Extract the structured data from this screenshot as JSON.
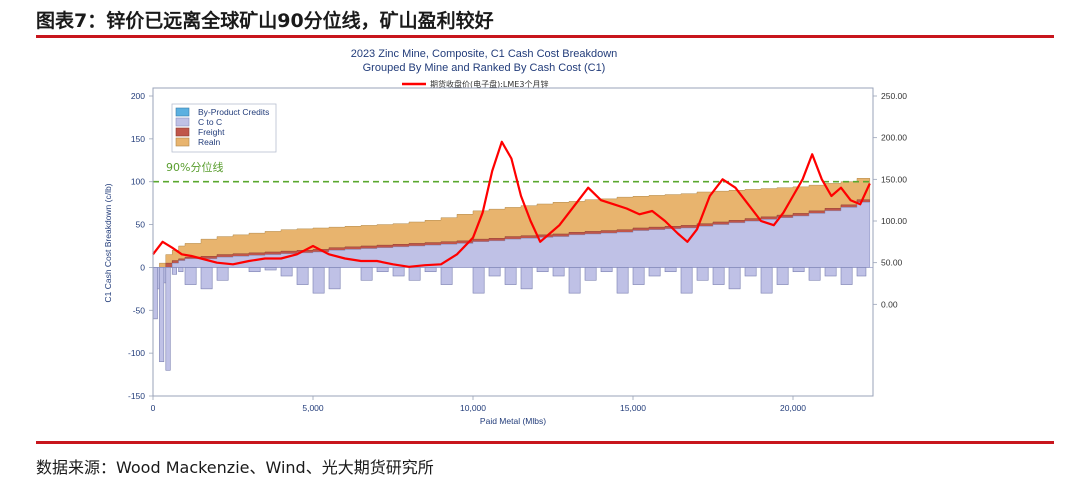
{
  "figure_title": "图表7：锌价已远离全球矿山90分位线，矿山盈利较好",
  "source": "数据来源：Wood Mackenzie、Wind、光大期货研究所",
  "colors": {
    "accent_bar": "#c8161d",
    "by_product_credits": "#5bb0e0",
    "c_to_c": "#bfc1e6",
    "freight": "#c0564a",
    "realn": "#e8b46e",
    "price_line": "#ff0000",
    "percentile_line": "#5aa82f"
  },
  "chart_data": {
    "type": "area",
    "title": "2023 Zinc Mine, Composite, C1 Cash Cost Breakdown",
    "subtitle": "Grouped By Mine and Ranked By Cash Cost (C1)",
    "xlabel": "Paid Metal (Mlbs)",
    "ylabel": "C1 Cash Cost Breakdown (c/lb)",
    "xlim": [
      0,
      22500
    ],
    "ylim": [
      -150,
      200
    ],
    "x_ticks": [
      "0",
      "5,000",
      "10,000",
      "15,000",
      "20,000"
    ],
    "y_ticks": [
      "200",
      "150",
      "100",
      "50",
      "0",
      "-50",
      "-100",
      "-150"
    ],
    "right_axis": {
      "ticks": [
        "250.00",
        "200.00",
        "150.00",
        "100.00",
        "50.00",
        "0.00"
      ],
      "ylim": [
        -110,
        250
      ]
    },
    "legend": {
      "placement": "top-left",
      "entries": [
        "By-Product Credits",
        "C to C",
        "Freight",
        "Realn"
      ]
    },
    "price_series_name": "期货收盘价(电子盘):LME3个月锌",
    "percentile_label": "90%分位线",
    "percentile_value": 100,
    "cost_curve": {
      "x": [
        0,
        200,
        400,
        600,
        800,
        1000,
        1500,
        2000,
        2500,
        3000,
        3500,
        4000,
        4500,
        5000,
        5500,
        6000,
        6500,
        7000,
        7500,
        8000,
        8500,
        9000,
        9500,
        10000,
        10500,
        11000,
        11500,
        12000,
        12500,
        13000,
        13500,
        14000,
        14500,
        15000,
        15500,
        16000,
        16500,
        17000,
        17500,
        18000,
        18500,
        19000,
        19500,
        20000,
        20500,
        21000,
        21500,
        22000,
        22400
      ],
      "c_to_c": [
        -25,
        -18,
        0,
        5,
        8,
        10,
        10,
        12,
        13,
        14,
        15,
        16,
        17,
        18,
        20,
        21,
        22,
        23,
        24,
        25,
        26,
        27,
        28,
        30,
        31,
        33,
        34,
        35,
        36,
        38,
        39,
        40,
        41,
        43,
        44,
        45,
        46,
        48,
        50,
        52,
        54,
        56,
        58,
        60,
        63,
        66,
        70,
        76,
        90
      ],
      "freight": [
        -15,
        -10,
        5,
        8,
        10,
        12,
        13,
        15,
        16,
        17,
        18,
        19,
        20,
        21,
        23,
        24,
        25,
        26,
        27,
        28,
        29,
        30,
        31,
        33,
        34,
        36,
        37,
        38,
        39,
        41,
        42,
        43,
        44,
        46,
        47,
        48,
        49,
        51,
        53,
        55,
        57,
        59,
        61,
        63,
        66,
        69,
        73,
        79,
        94
      ],
      "total": [
        -5,
        5,
        15,
        20,
        25,
        28,
        33,
        36,
        38,
        40,
        42,
        44,
        45,
        46,
        47,
        48,
        49,
        50,
        51,
        53,
        55,
        58,
        62,
        66,
        68,
        70,
        72,
        74,
        76,
        77,
        79,
        80,
        82,
        83,
        84,
        85,
        86,
        88,
        89,
        90,
        91,
        92,
        93,
        94,
        96,
        98,
        100,
        104,
        115
      ],
      "credits": [
        -60,
        -110,
        -120,
        -8,
        -5,
        -20,
        -25,
        -15,
        0,
        -5,
        -3,
        -10,
        -20,
        -30,
        -25,
        0,
        -15,
        -5,
        -10,
        -15,
        -5,
        -20,
        0,
        -30,
        -10,
        -20,
        -25,
        -5,
        -10,
        -30,
        -15,
        -5,
        -30,
        -20,
        -10,
        -5,
        -30,
        -15,
        -20,
        -25,
        -10,
        -30,
        -20,
        -5,
        -15,
        -10,
        -20,
        -10,
        -30
      ]
    },
    "price_line": {
      "x": [
        0,
        300,
        600,
        900,
        1200,
        1500,
        2000,
        2500,
        3000,
        3500,
        4000,
        4500,
        5000,
        5500,
        6000,
        6500,
        7000,
        7500,
        8000,
        8500,
        9000,
        9500,
        10000,
        10300,
        10600,
        10900,
        11200,
        11500,
        11800,
        12100,
        12400,
        12700,
        13000,
        13300,
        13600,
        14000,
        14400,
        14800,
        15200,
        15600,
        16000,
        16400,
        16700,
        17000,
        17400,
        17800,
        18200,
        18600,
        19000,
        19400,
        19700,
        20000,
        20300,
        20600,
        20900,
        21200,
        21500,
        21800,
        22100,
        22400
      ],
      "y": [
        60,
        75,
        68,
        60,
        58,
        55,
        50,
        48,
        52,
        55,
        55,
        60,
        70,
        60,
        55,
        52,
        52,
        48,
        45,
        47,
        48,
        60,
        80,
        110,
        160,
        195,
        175,
        130,
        100,
        75,
        85,
        95,
        110,
        125,
        140,
        125,
        120,
        115,
        108,
        112,
        100,
        85,
        75,
        90,
        130,
        150,
        140,
        120,
        100,
        95,
        110,
        130,
        150,
        180,
        150,
        130,
        140,
        125,
        120,
        145
      ]
    }
  }
}
